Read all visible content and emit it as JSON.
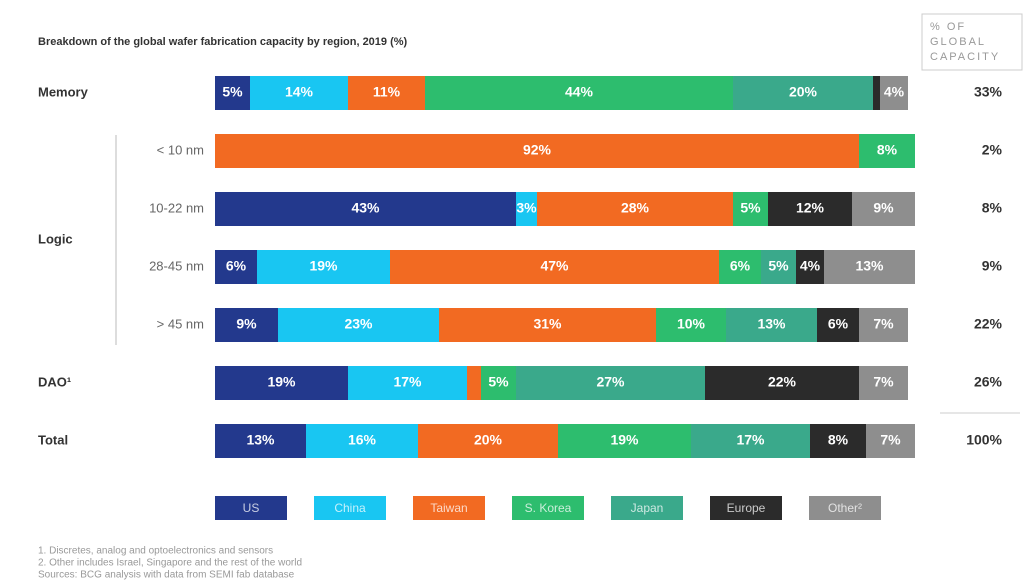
{
  "chart_data": {
    "type": "bar",
    "orientation": "horizontal",
    "stacked": true,
    "title": "Breakdown of the global wafer fabrication capacity by region, 2019 (%)",
    "categories": [
      "Memory",
      "< 10 nm",
      "10-22 nm",
      "28-45 nm",
      "> 45 nm",
      "DAO¹",
      "Total"
    ],
    "group_label": "Logic",
    "xlim": [
      0,
      100
    ],
    "series": [
      {
        "name": "US",
        "color": "#23398d",
        "values": [
          5,
          0,
          43,
          6,
          9,
          19,
          13
        ],
        "value_labels": [
          "5%",
          null,
          "43%",
          "6%",
          "9%",
          "19%",
          "13%"
        ]
      },
      {
        "name": "China",
        "color": "#19c6f2",
        "values": [
          14,
          0,
          3,
          19,
          23,
          17,
          16
        ],
        "value_labels": [
          "14%",
          null,
          "3%",
          "19%",
          "23%",
          "17%",
          "16%"
        ]
      },
      {
        "name": "Taiwan",
        "color": "#f26a22",
        "values": [
          11,
          92,
          28,
          47,
          31,
          2,
          20
        ],
        "value_labels": [
          "11%",
          "92%",
          "28%",
          "47%",
          "31%",
          null,
          "20%"
        ]
      },
      {
        "name": "S. Korea",
        "color": "#2dbd6e",
        "values": [
          44,
          8,
          5,
          6,
          10,
          5,
          19
        ],
        "value_labels": [
          "44%",
          "8%",
          "5%",
          "6%",
          "10%",
          "5%",
          "19%"
        ]
      },
      {
        "name": "Japan",
        "color": "#3aa98b",
        "values": [
          20,
          0,
          0,
          5,
          13,
          27,
          17
        ],
        "value_labels": [
          "20%",
          null,
          null,
          "5%",
          "13%",
          "27%",
          "17%"
        ]
      },
      {
        "name": "Europe",
        "color": "#2b2b2b",
        "values": [
          1,
          0,
          12,
          4,
          6,
          22,
          8
        ],
        "value_labels": [
          null,
          null,
          "12%",
          "4%",
          "6%",
          "22%",
          "8%"
        ]
      },
      {
        "name": "Other²",
        "color": "#8e8e8e",
        "values": [
          4,
          0,
          9,
          13,
          7,
          7,
          7
        ],
        "value_labels": [
          "4%",
          null,
          "9%",
          "13%",
          "7%",
          "7%",
          "7%"
        ]
      }
    ],
    "share_title": [
      "% OF",
      "GLOBAL",
      "CAPACITY"
    ],
    "share_labels": [
      "33%",
      "2%",
      "8%",
      "9%",
      "22%",
      "26%",
      "100%"
    ],
    "footnotes": [
      "1. Discretes, analog and optoelectronics and sensors",
      "2. Other includes Israel, Singapore and the rest of the world",
      "Sources: BCG analysis with data from SEMI fab database"
    ]
  }
}
